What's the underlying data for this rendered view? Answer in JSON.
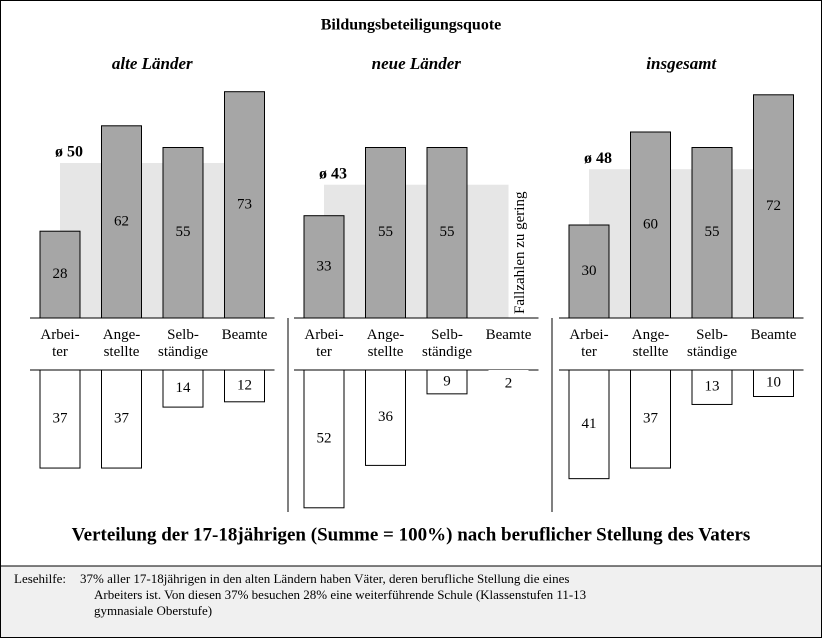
{
  "title": "Bildungsbeteiligungsquote",
  "chart_data": [
    {
      "type": "bar",
      "title": "alte Länder",
      "average": {
        "value": 50,
        "label": "ø 50"
      },
      "categories": [
        [
          "Arbei-",
          "ter"
        ],
        [
          "Ange-",
          "stellte"
        ],
        [
          "Selb-",
          "ständige"
        ],
        [
          "Beamte"
        ]
      ],
      "series": [
        {
          "color": "#a6a6a6",
          "values": [
            28,
            62,
            55,
            73
          ]
        },
        {
          "color": "#ffffff",
          "values": [
            37,
            37,
            14,
            12
          ]
        }
      ]
    },
    {
      "type": "bar",
      "title": "neue Länder",
      "average": {
        "value": 43,
        "label": "ø 43"
      },
      "annotation": "Fallzahlen zu gering",
      "categories": [
        [
          "Arbei-",
          "ter"
        ],
        [
          "Ange-",
          "stellte"
        ],
        [
          "Selb-",
          "ständige"
        ],
        [
          "Beamte"
        ]
      ],
      "series": [
        {
          "color": "#a6a6a6",
          "values": [
            33,
            55,
            55,
            null
          ]
        },
        {
          "color": "#ffffff",
          "values": [
            52,
            36,
            9,
            2
          ]
        }
      ]
    },
    {
      "type": "bar",
      "title": "insgesamt",
      "average": {
        "value": 48,
        "label": "ø 48"
      },
      "categories": [
        [
          "Arbei-",
          "ter"
        ],
        [
          "Ange-",
          "stellte"
        ],
        [
          "Selb-",
          "ständige"
        ],
        [
          "Beamte"
        ]
      ],
      "series": [
        {
          "color": "#a6a6a6",
          "values": [
            30,
            60,
            55,
            72
          ]
        },
        {
          "color": "#ffffff",
          "values": [
            41,
            37,
            13,
            10
          ]
        }
      ]
    }
  ],
  "caption": "Verteilung der 17-18jährigen (Summe = 100%) nach beruflicher Stellung des Vaters",
  "note": {
    "label": "Lesehilfe:",
    "lines": [
      "37% aller 17-18jährigen in den alten Ländern haben Väter, deren berufliche Stellung die eines",
      "Arbeiters ist. Von diesen 37% besuchen 28% eine weiterführende Schule (Klassenstufen 11-13",
      "gymnasiale Oberstufe)"
    ]
  }
}
